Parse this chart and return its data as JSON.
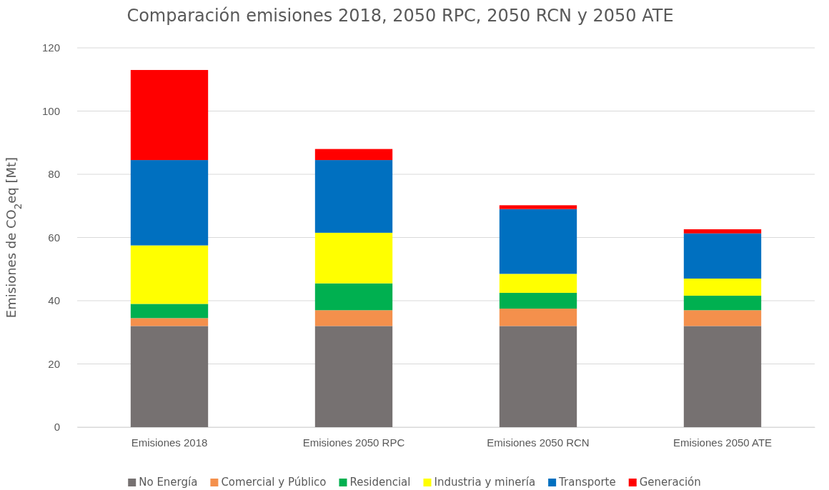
{
  "chart_data": {
    "type": "bar",
    "title": "Comparación emisiones 2018, 2050 RPC, 2050 RCN y 2050 ATE",
    "ylabel": "Emisiones de CO$_{2}$eq [Mt]",
    "categories": [
      "Emisiones 2018",
      "Emisiones 2050 RPC",
      "Emisiones 2050 RCN",
      "Emisiones 2050 ATE"
    ],
    "stacked": true,
    "series": [
      {
        "name": "No Energía",
        "color": "#767171",
        "values": [
          32,
          32,
          32,
          32
        ]
      },
      {
        "name": "Comercial y Público",
        "color": "#f4904c",
        "values": [
          2.5,
          5,
          5.5,
          5
        ]
      },
      {
        "name": "Residencial",
        "color": "#00b050",
        "values": [
          4.5,
          8.5,
          5,
          4.6
        ]
      },
      {
        "name": "Industria y minería",
        "color": "#ffff00",
        "values": [
          18.5,
          16,
          6,
          5.4
        ]
      },
      {
        "name": "Transporte",
        "color": "#0070c0",
        "values": [
          27,
          23,
          20.5,
          14.3
        ]
      },
      {
        "name": "Generación",
        "color": "#ff0000",
        "values": [
          28.5,
          3.5,
          1.2,
          1.3
        ]
      }
    ],
    "ylim": [
      0,
      120
    ],
    "yticks": [
      0,
      20,
      40,
      60,
      80,
      100,
      120
    ],
    "grid": "y",
    "legend": "bottom"
  }
}
